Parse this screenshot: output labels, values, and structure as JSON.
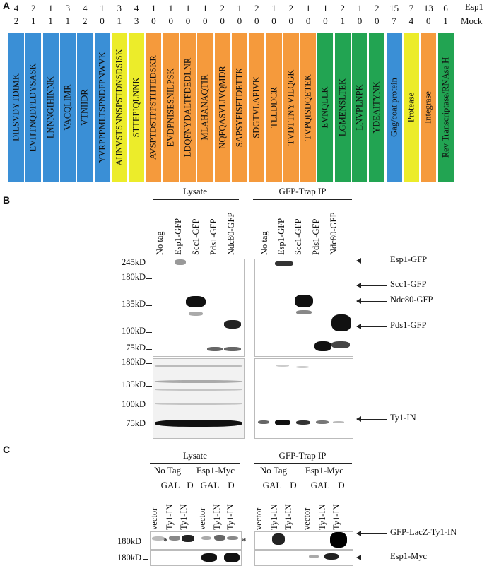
{
  "panelA": {
    "letter": "A",
    "row_labels": [
      "Esp1",
      "Mock"
    ],
    "columns": [
      {
        "label": "DILSVDYTDIMK",
        "esp1": "4",
        "mock": "2",
        "color": "#3a8fd6"
      },
      {
        "label": "EVHTNQDPLDYSASK",
        "esp1": "2",
        "mock": "1",
        "color": "#3a8fd6"
      },
      {
        "label": "LNNNGIHINNK",
        "esp1": "1",
        "mock": "1",
        "color": "#3a8fd6"
      },
      {
        "label": "VACQLIMR",
        "esp1": "3",
        "mock": "1",
        "color": "#3a8fd6"
      },
      {
        "label": "VTNIIDR",
        "esp1": "4",
        "mock": "2",
        "color": "#3a8fd6"
      },
      {
        "label": "YVRPPPMLTSPNDFPNWVK",
        "esp1": "1",
        "mock": "0",
        "color": "#3a8fd6"
      },
      {
        "label": "AHNVSTSNNSPSTDNSDSISK",
        "esp1": "3",
        "mock": "1",
        "color": "#ecec2a"
      },
      {
        "label": "STTEPIQLNNK",
        "esp1": "4",
        "mock": "3",
        "color": "#ecec2a"
      },
      {
        "label": "AVSPTDSTPPSTHTEDSKR",
        "esp1": "1",
        "mock": "0",
        "color": "#f59a3c"
      },
      {
        "label": "EVDPNISESNILPSK",
        "esp1": "1",
        "mock": "0",
        "color": "#f59a3c"
      },
      {
        "label": "LDQFNYDALTFDEDLNR",
        "esp1": "1",
        "mock": "0",
        "color": "#f59a3c"
      },
      {
        "label": "MLAHANAQTIR",
        "esp1": "1",
        "mock": "0",
        "color": "#f59a3c"
      },
      {
        "label": "NQFQASVLIVQMDR",
        "esp1": "2",
        "mock": "0",
        "color": "#f59a3c"
      },
      {
        "label": "SAPSYFISFTDETTK",
        "esp1": "1",
        "mock": "0",
        "color": "#f59a3c"
      },
      {
        "label": "SDGTVLAPIVK",
        "esp1": "2",
        "mock": "0",
        "color": "#f59a3c"
      },
      {
        "label": "TLLDDCR",
        "esp1": "1",
        "mock": "0",
        "color": "#f59a3c"
      },
      {
        "label": "TVDTTNYVILQGK",
        "esp1": "2",
        "mock": "0",
        "color": "#f59a3c"
      },
      {
        "label": "TVPQISDQETEK",
        "esp1": "1",
        "mock": "0",
        "color": "#f59a3c"
      },
      {
        "label": "EVNQLLK",
        "esp1": "1",
        "mock": "0",
        "color": "#22a452"
      },
      {
        "label": "LGMENSLTEK",
        "esp1": "2",
        "mock": "1",
        "color": "#22a452"
      },
      {
        "label": "LNVPLNPK",
        "esp1": "1",
        "mock": "0",
        "color": "#22a452"
      },
      {
        "label": "YDEAITYNK",
        "esp1": "2",
        "mock": "0",
        "color": "#22a452"
      },
      {
        "label": "Gag/coat protein",
        "esp1": "15",
        "mock": "7",
        "color": "#3a8fd6"
      },
      {
        "label": "Protease",
        "esp1": "7",
        "mock": "4",
        "color": "#ecec2a"
      },
      {
        "label": "Integrase",
        "esp1": "13",
        "mock": "0",
        "color": "#f59a3c"
      },
      {
        "label": "Rev Transcriptase/RNAse H",
        "esp1": "6",
        "mock": "1",
        "color": "#22a452"
      }
    ]
  },
  "panelB": {
    "letter": "B",
    "lysate_header": "Lysate",
    "ip_header": "GFP-Trap IP",
    "lanes": [
      "No tag",
      "Esp1-GFP",
      "Scc1-GFP",
      "Pds1-GFP",
      "Ndc80-GFP"
    ],
    "top_markers": [
      "245kD",
      "180kD",
      "135kD",
      "100kD",
      "75kD"
    ],
    "bottom_markers": [
      "180kD",
      "135kD",
      "100kD",
      "75kD"
    ],
    "arrows": [
      "Esp1-GFP",
      "Scc1-GFP",
      "Ndc80-GFP",
      "Pds1-GFP",
      "Ty1-IN"
    ]
  },
  "panelC": {
    "letter": "C",
    "lysate_header": "Lysate",
    "ip_header": "GFP-Trap IP",
    "groups": [
      "No Tag",
      "Esp1-Myc"
    ],
    "conditions": [
      "GAL",
      "D"
    ],
    "lanes": [
      "vector",
      "Ty1-IN",
      "Ty1-IN",
      "vector",
      "Ty1-IN",
      "Ty1-IN"
    ],
    "markers": [
      "180kD",
      "180kD"
    ],
    "asterisk": "*",
    "arrows": [
      "GFP-LacZ-Ty1-IN",
      "Esp1-Myc"
    ]
  }
}
